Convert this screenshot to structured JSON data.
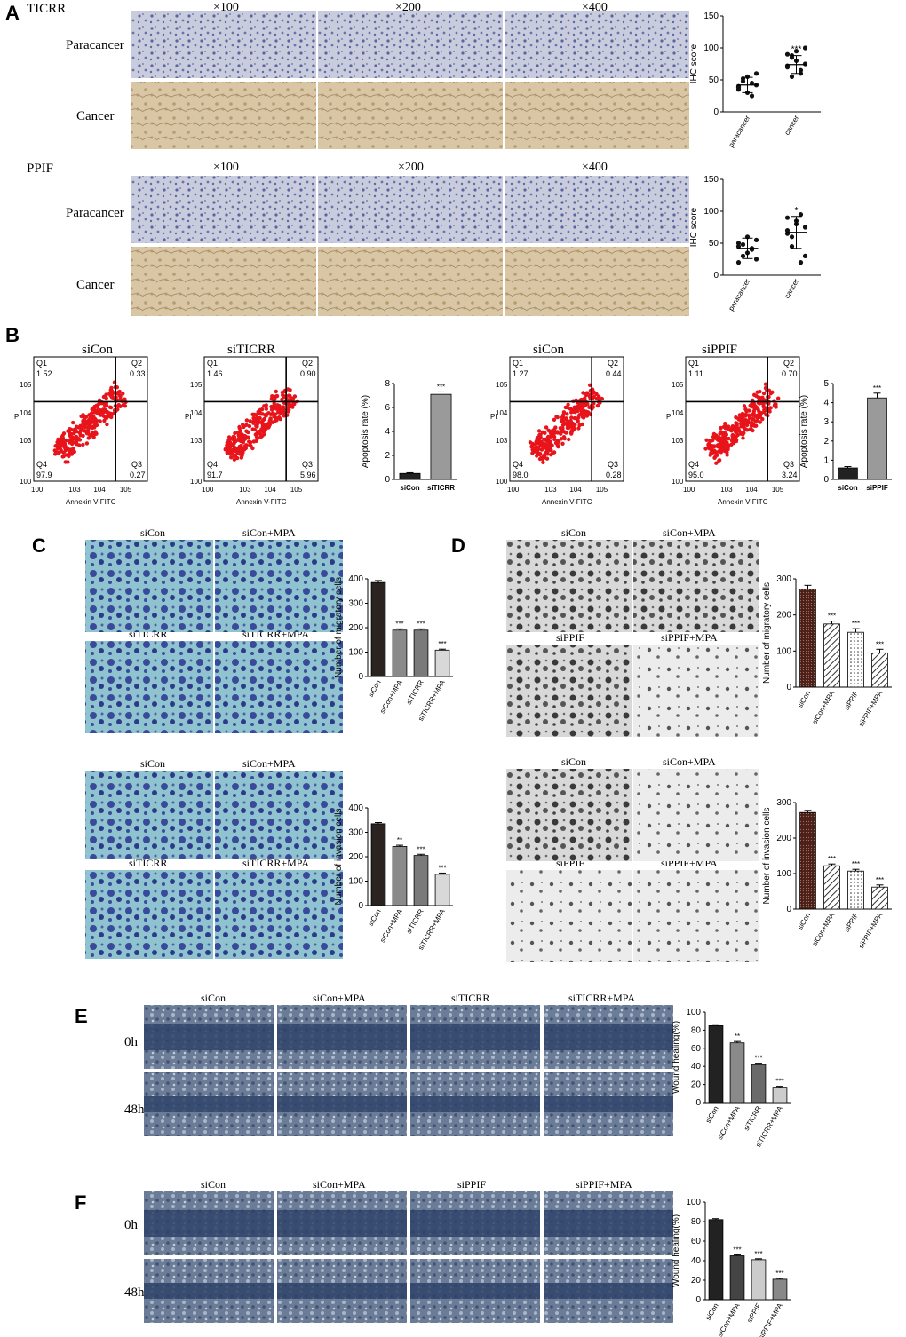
{
  "panels": [
    "A",
    "B",
    "C",
    "D",
    "E",
    "F"
  ],
  "A": {
    "sections": [
      {
        "gene": "TICRR",
        "mags": [
          "×100",
          "×200",
          "×400"
        ],
        "rows": [
          "Paracancer",
          "Cancer"
        ]
      },
      {
        "gene": "PPIF",
        "mags": [
          "×100",
          "×200",
          "×400"
        ],
        "rows": [
          "Paracancer",
          "Cancer"
        ]
      }
    ]
  },
  "B": {
    "flow": [
      {
        "title": "siCon",
        "q1": "1.52",
        "q2": "0.33",
        "q3": "0.27",
        "q4": "97.9"
      },
      {
        "title": "siTICRR",
        "q1": "1.46",
        "q2": "0.90",
        "q3": "5.96",
        "q4": "91.7"
      },
      {
        "title": "siCon",
        "q1": "1.27",
        "q2": "0.44",
        "q3": "0.28",
        "q4": "98.0"
      },
      {
        "title": "siPPIF",
        "q1": "1.11",
        "q2": "0.70",
        "q3": "3.24",
        "q4": "95.0"
      }
    ],
    "quadrants": [
      "Q1",
      "Q2",
      "Q3",
      "Q4"
    ],
    "xlabel": "Annexin V-FITC",
    "ylabel": "PI",
    "ticks": [
      "0",
      "3",
      "4",
      "5"
    ]
  },
  "C": {
    "migration": {
      "images": [
        "siCon",
        "siCon+MPA",
        "siTICRR",
        "siTICRR+MPA"
      ]
    },
    "invasion": {
      "images": [
        "siCon",
        "siCon+MPA",
        "siTICRR",
        "siTICRR+MPA"
      ]
    }
  },
  "D": {
    "migration": {
      "images": [
        "siCon",
        "siCon+MPA",
        "siPPIF",
        "siPPIF+MPA"
      ]
    },
    "invasion": {
      "images": [
        "siCon",
        "siCon+MPA",
        "siPPIF",
        "siPPIF+MPA"
      ]
    }
  },
  "E": {
    "cols": [
      "siCon",
      "siCon+MPA",
      "siTICRR",
      "siTICRR+MPA"
    ],
    "rows": [
      "0h",
      "48h"
    ]
  },
  "F": {
    "cols": [
      "siCon",
      "siCon+MPA",
      "siPPIF",
      "siPPIF+MPA"
    ],
    "rows": [
      "0h",
      "48h"
    ]
  },
  "chart_data": [
    {
      "id": "A1",
      "type": "scatter",
      "ylabel": "IHC score",
      "categories": [
        "paracancer",
        "cancer"
      ],
      "yticks": [
        0,
        50,
        100,
        150
      ],
      "ylim": [
        0,
        150
      ],
      "points": [
        [
          40,
          52,
          30,
          45,
          60,
          35,
          48,
          55,
          25,
          42,
          38
        ],
        [
          70,
          85,
          95,
          60,
          75,
          90,
          55,
          80,
          65,
          100,
          72,
          88
        ]
      ],
      "mean": [
        42,
        74
      ],
      "sd": [
        12,
        14
      ],
      "sig": [
        "",
        "***"
      ]
    },
    {
      "id": "A2",
      "type": "scatter",
      "ylabel": "IHC score",
      "categories": [
        "paracancer",
        "cancer"
      ],
      "yticks": [
        0,
        50,
        100,
        150
      ],
      "ylim": [
        0,
        150
      ],
      "points": [
        [
          45,
          30,
          60,
          40,
          55,
          20,
          48,
          35,
          42,
          25,
          50
        ],
        [
          90,
          60,
          80,
          95,
          30,
          70,
          45,
          85,
          20,
          75,
          65
        ]
      ],
      "mean": [
        42,
        67
      ],
      "sd": [
        16,
        25
      ],
      "sig": [
        "",
        "*"
      ]
    },
    {
      "id": "B1",
      "type": "bar",
      "ylabel": "Apoptosis rate (%)",
      "categories": [
        "siCon",
        "siTICRR"
      ],
      "values": [
        0.5,
        7.1
      ],
      "err": [
        0.06,
        0.2
      ],
      "yticks": [
        0,
        2,
        4,
        6,
        8
      ],
      "ylim": [
        0,
        8
      ],
      "sig": [
        "",
        "***"
      ],
      "colors": [
        "#222222",
        "#9a9a9a"
      ]
    },
    {
      "id": "B2",
      "type": "bar",
      "ylabel": "Apoptosis rate (%)",
      "categories": [
        "siCon",
        "siPPIF"
      ],
      "values": [
        0.6,
        4.25
      ],
      "err": [
        0.07,
        0.25
      ],
      "yticks": [
        0,
        1,
        2,
        3,
        4,
        5
      ],
      "ylim": [
        0,
        5
      ],
      "sig": [
        "",
        "***"
      ],
      "colors": [
        "#222222",
        "#9a9a9a"
      ]
    },
    {
      "id": "C1",
      "type": "bar",
      "ylabel": "Number of migratory cells",
      "categories": [
        "siCon",
        "siCon+MPA",
        "siTICRR",
        "siTICRR+MPA"
      ],
      "values": [
        385,
        190,
        190,
        108
      ],
      "err": [
        8,
        5,
        5,
        4
      ],
      "yticks": [
        0,
        100,
        200,
        300,
        400
      ],
      "ylim": [
        0,
        400
      ],
      "sig": [
        "",
        "***",
        "***",
        "***"
      ],
      "colors": [
        "#2a2320",
        "#8a8a8a",
        "#7a7a7a",
        "#d8d8d8"
      ]
    },
    {
      "id": "C2",
      "type": "bar",
      "ylabel": "Number of invasion cells",
      "categories": [
        "siCon",
        "siCon+MPA",
        "siTICRR",
        "siTICRR+MPA"
      ],
      "values": [
        335,
        242,
        205,
        128
      ],
      "err": [
        5,
        5,
        5,
        5
      ],
      "yticks": [
        0,
        100,
        200,
        300,
        400
      ],
      "ylim": [
        0,
        400
      ],
      "sig": [
        "",
        "**",
        "***",
        "***"
      ],
      "colors": [
        "#2a2320",
        "#8a8a8a",
        "#7a7a7a",
        "#d8d8d8"
      ]
    },
    {
      "id": "D1",
      "type": "bar",
      "ylabel": "Number of migratory cells",
      "categories": [
        "siCon",
        "siCon+MPA",
        "siPPIF",
        "siPPIF+MPA"
      ],
      "values": [
        272,
        175,
        152,
        95
      ],
      "err": [
        10,
        8,
        10,
        10
      ],
      "yticks": [
        0,
        100,
        200,
        300
      ],
      "ylim": [
        0,
        300
      ],
      "sig": [
        "",
        "***",
        "***",
        "***"
      ],
      "colors": [
        "#5a2a20",
        "#8a8a8a",
        "#dddddd",
        "#bbbbbb"
      ]
    },
    {
      "id": "D2",
      "type": "bar",
      "ylabel": "Number of invasion cells",
      "categories": [
        "siCon",
        "siCon+MPA",
        "siPPIF",
        "siPPIF+MPA"
      ],
      "values": [
        272,
        122,
        107,
        62
      ],
      "err": [
        6,
        5,
        5,
        6
      ],
      "yticks": [
        0,
        100,
        200,
        300
      ],
      "ylim": [
        0,
        300
      ],
      "sig": [
        "",
        "***",
        "***",
        "***"
      ],
      "colors": [
        "#5a2a20",
        "#8a8a8a",
        "#dddddd",
        "#bbbbbb"
      ]
    },
    {
      "id": "E1",
      "type": "bar",
      "ylabel": "Wound healing(%)",
      "categories": [
        "siCon",
        "siCon+MPA",
        "siTICRR",
        "siTICRR+MPA"
      ],
      "values": [
        85,
        66,
        42,
        17
      ],
      "err": [
        1,
        1.5,
        1.5,
        1
      ],
      "yticks": [
        0,
        20,
        40,
        60,
        80,
        100
      ],
      "ylim": [
        0,
        100
      ],
      "sig": [
        "",
        "**",
        "***",
        "***"
      ],
      "colors": [
        "#222222",
        "#8a8a8a",
        "#6a6a6a",
        "#cccccc"
      ]
    },
    {
      "id": "F1",
      "type": "bar",
      "ylabel": "Wound healing(%)",
      "categories": [
        "siCon",
        "siCon+MPA",
        "siPPIF",
        "siPPIF+MPA"
      ],
      "values": [
        82,
        45,
        41,
        21
      ],
      "err": [
        1,
        1,
        1,
        1
      ],
      "yticks": [
        0,
        20,
        40,
        60,
        80,
        100
      ],
      "ylim": [
        0,
        100
      ],
      "sig": [
        "",
        "***",
        "***",
        "***"
      ],
      "colors": [
        "#222222",
        "#444444",
        "#cccccc",
        "#888888"
      ]
    }
  ]
}
